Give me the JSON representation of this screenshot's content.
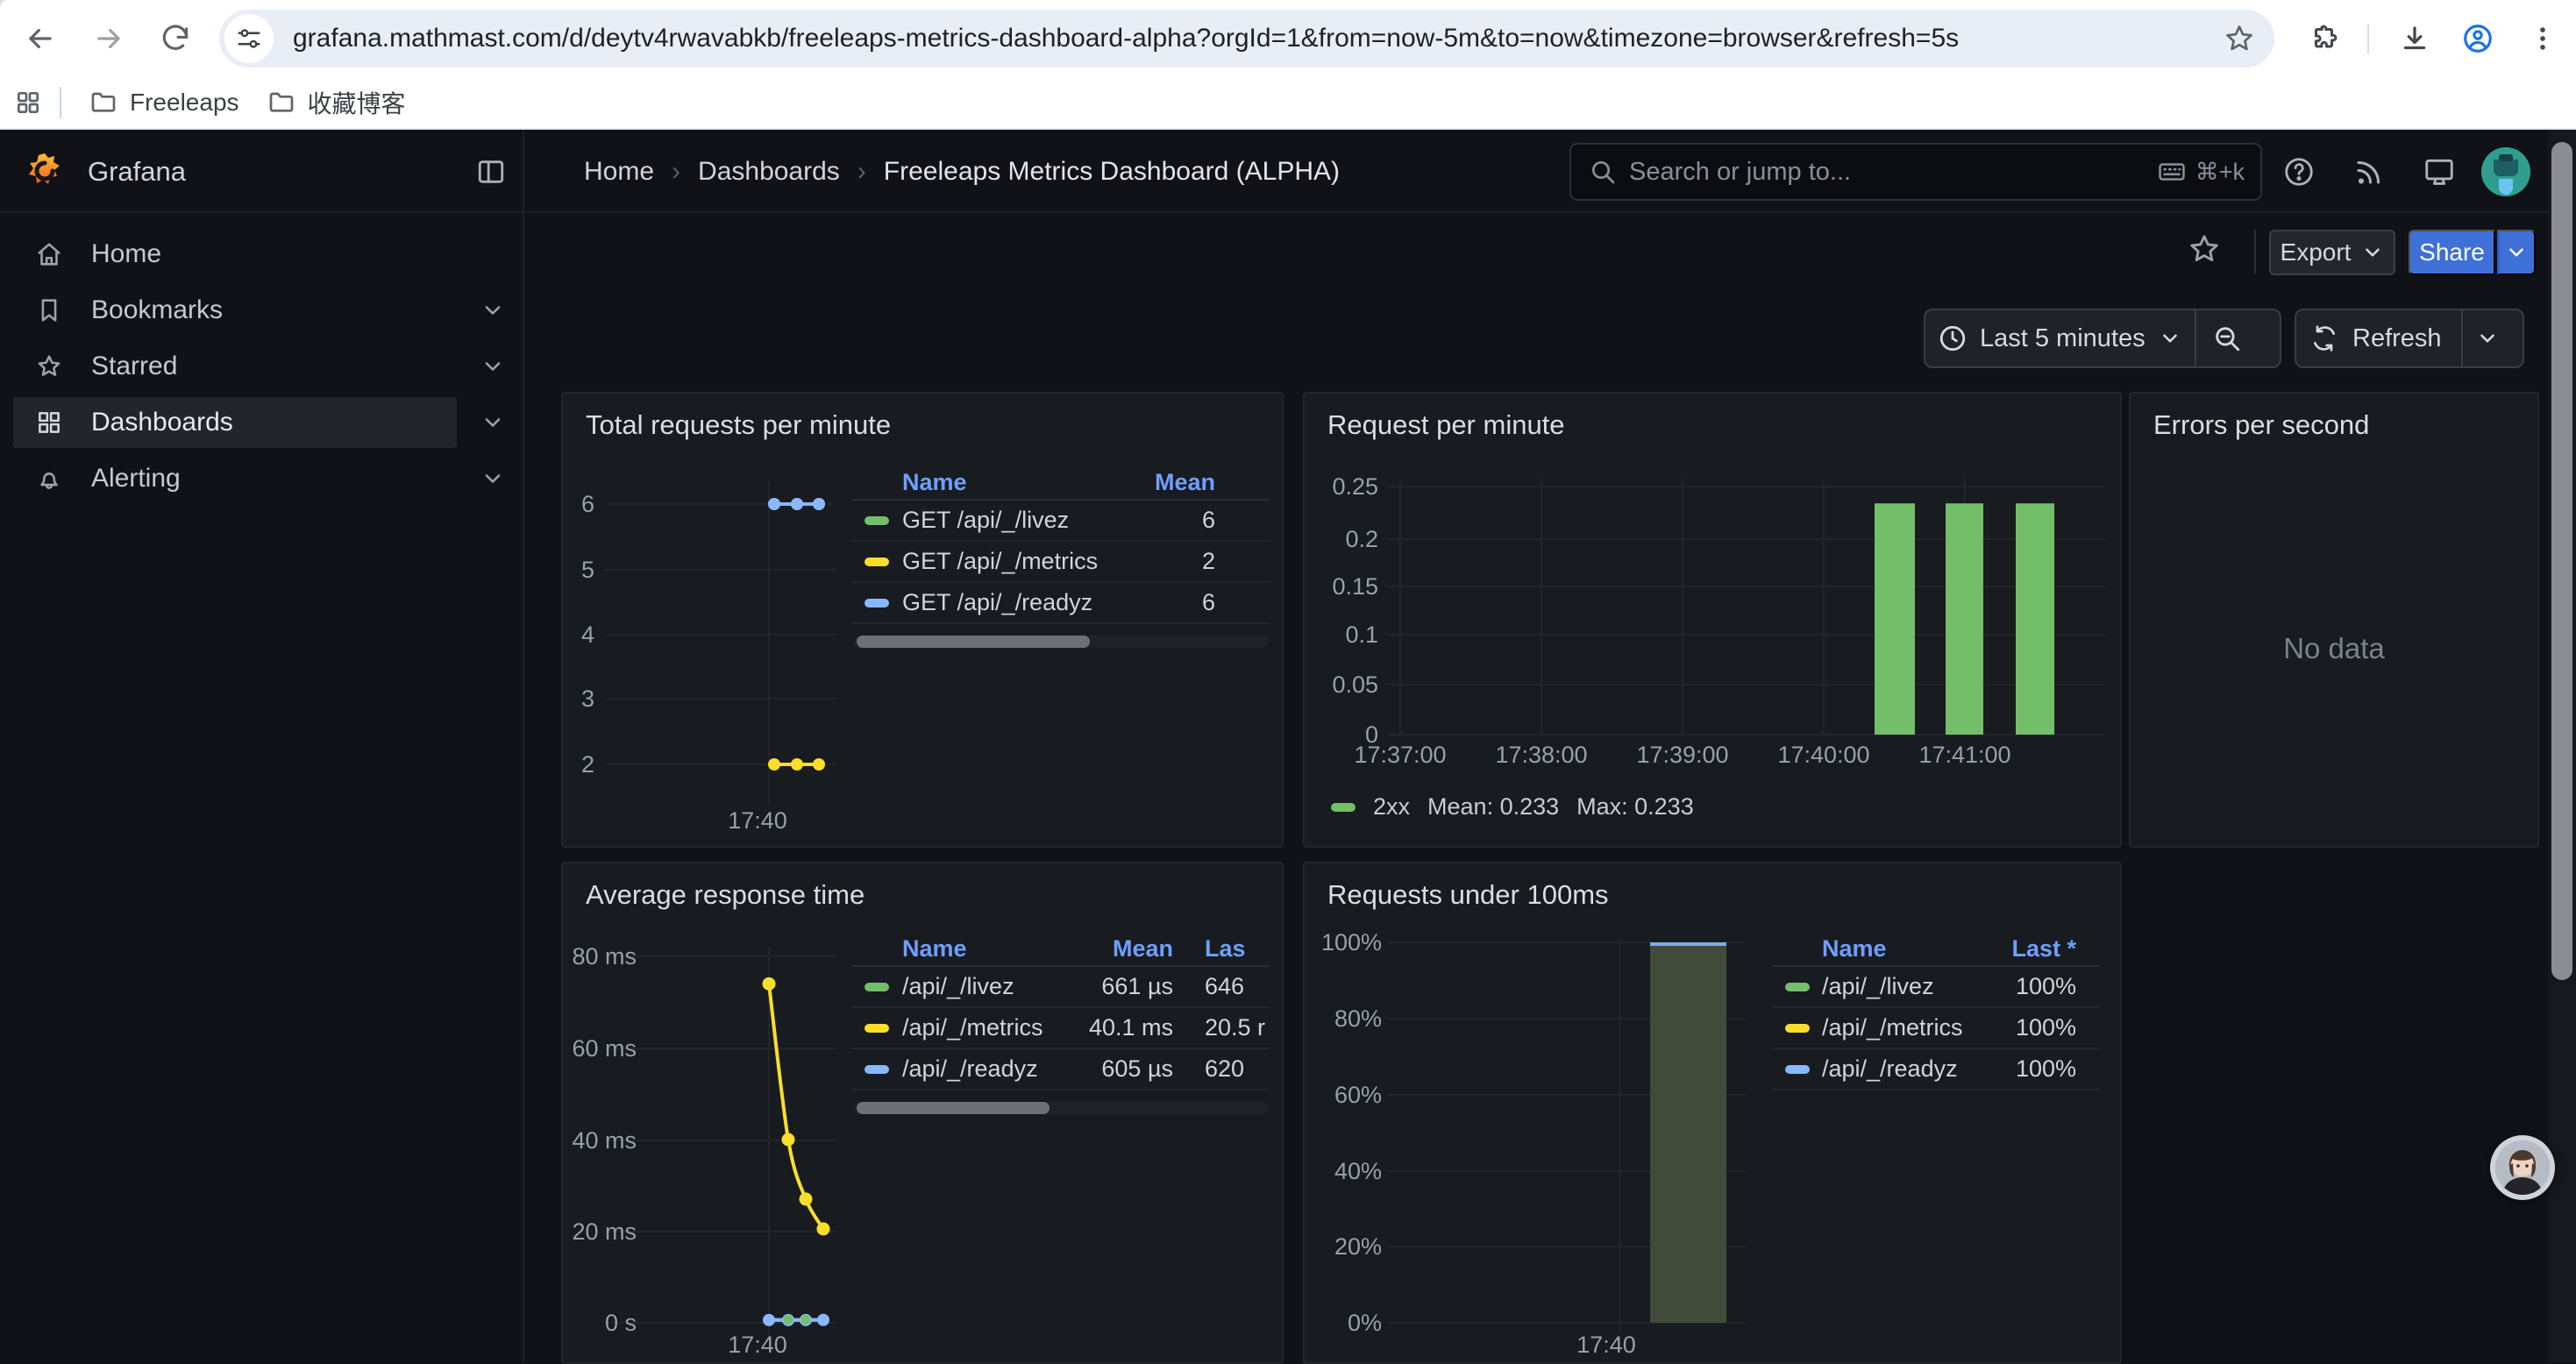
{
  "browser": {
    "url": "grafana.mathmast.com/d/deytv4rwavabkb/freeleaps-metrics-dashboard-alpha?orgId=1&from=now-5m&to=now&timezone=browser&refresh=5s",
    "bookmarks": [
      {
        "label": "Freeleaps"
      },
      {
        "label": "收藏博客"
      }
    ]
  },
  "nav": {
    "brand": "Grafana",
    "breadcrumb": [
      "Home",
      "Dashboards",
      "Freeleaps Metrics Dashboard (ALPHA)"
    ],
    "search": {
      "placeholder": "Search or jump to...",
      "shortcut": "⌘+k"
    }
  },
  "sidebar": {
    "items": [
      {
        "label": "Home",
        "icon": "home",
        "expandable": false,
        "active": false
      },
      {
        "label": "Bookmarks",
        "icon": "bookmark",
        "expandable": true,
        "active": false
      },
      {
        "label": "Starred",
        "icon": "star",
        "expandable": true,
        "active": false
      },
      {
        "label": "Dashboards",
        "icon": "apps",
        "expandable": true,
        "active": true
      },
      {
        "label": "Alerting",
        "icon": "bell",
        "expandable": true,
        "active": false
      }
    ]
  },
  "toolbar": {
    "export_label": "Export",
    "share_label": "Share"
  },
  "timebar": {
    "range_label": "Last 5 minutes",
    "refresh_label": "Refresh"
  },
  "colors": {
    "green": "#73bf69",
    "yellow": "#fade2a",
    "blue": "#8ab8ff",
    "link": "#6e9fff",
    "accent": "#3e70d8"
  },
  "panels": [
    {
      "title": "Total requests per minute",
      "chart_data": {
        "type": "line",
        "x_ticks": [
          "17:40"
        ],
        "y_ticks": [
          "6",
          "5",
          "4",
          "3",
          "2"
        ],
        "ylim": [
          2,
          6
        ],
        "x_points": [
          "17:40:05",
          "17:40:35",
          "17:41:05"
        ],
        "series": [
          {
            "name": "GET /api/_/livez",
            "color": "#73bf69",
            "values": [
              6,
              6,
              6
            ]
          },
          {
            "name": "GET /api/_/metrics",
            "color": "#fade2a",
            "values": [
              2,
              2,
              2
            ]
          },
          {
            "name": "GET /api/_/readyz",
            "color": "#8ab8ff",
            "values": [
              6,
              6,
              6
            ]
          }
        ]
      },
      "legend_table": {
        "columns": [
          "Name",
          "Mean"
        ],
        "rows": [
          {
            "name": "GET /api/_/livez",
            "color": "#73bf69",
            "mean": "6"
          },
          {
            "name": "GET /api/_/metrics",
            "color": "#fade2a",
            "mean": "2"
          },
          {
            "name": "GET /api/_/readyz",
            "color": "#8ab8ff",
            "mean": "6"
          }
        ]
      }
    },
    {
      "title": "Request per minute",
      "chart_data": {
        "type": "bar",
        "x_ticks": [
          "17:37:00",
          "17:38:00",
          "17:39:00",
          "17:40:00",
          "17:41:00"
        ],
        "y_ticks": [
          "0.25",
          "0.2",
          "0.15",
          "0.1",
          "0.05",
          "0"
        ],
        "ylim": [
          0,
          0.25
        ],
        "bar_times": [
          "17:40:30",
          "17:41:00",
          "17:41:30"
        ],
        "values": [
          0.233,
          0.233,
          0.233
        ],
        "series_name": "2xx",
        "bar_color": "#73bf69"
      },
      "legend": {
        "name": "2xx",
        "mean": "Mean: 0.233",
        "max": "Max: 0.233"
      }
    },
    {
      "title": "Errors per second",
      "no_data": "No data"
    },
    {
      "title": "Average response time",
      "chart_data": {
        "type": "line",
        "x_ticks": [
          "17:40"
        ],
        "y_ticks": [
          "80 ms",
          "60 ms",
          "40 ms",
          "20 ms",
          "0 s"
        ],
        "ylim_ms": [
          0,
          80
        ],
        "x_points": [
          "17:40:00",
          "17:40:25",
          "17:40:50",
          "17:41:15"
        ],
        "series": [
          {
            "name": "/api/_/livez",
            "color": "#73bf69",
            "values_ms": [
              0.66,
              0.65,
              0.64,
              0.65
            ]
          },
          {
            "name": "/api/_/metrics",
            "color": "#fade2a",
            "values_ms": [
              74,
              40,
              27,
              20.5
            ]
          },
          {
            "name": "/api/_/readyz",
            "color": "#8ab8ff",
            "values_ms": [
              0.6,
              0.6,
              0.61,
              0.62
            ]
          }
        ]
      },
      "legend_table": {
        "columns": [
          "Name",
          "Mean",
          "Las"
        ],
        "rows": [
          {
            "name": "/api/_/livez",
            "color": "#73bf69",
            "mean": "661 µs",
            "last": "646"
          },
          {
            "name": "/api/_/metrics",
            "color": "#fade2a",
            "mean": "40.1 ms",
            "last": "20.5 r"
          },
          {
            "name": "/api/_/readyz",
            "color": "#8ab8ff",
            "mean": "605 µs",
            "last": "620"
          }
        ]
      }
    },
    {
      "title": "Requests under 100ms",
      "chart_data": {
        "type": "bar",
        "x_ticks": [
          "17:40"
        ],
        "y_ticks": [
          "100%",
          "80%",
          "60%",
          "40%",
          "20%",
          "0%"
        ],
        "ylim_pct": [
          0,
          100
        ],
        "bar_times": [
          "17:40:55"
        ],
        "values": [
          100
        ],
        "bar_fill": "#424a39",
        "bar_top_color": "#7fa8ec"
      },
      "legend_table": {
        "columns": [
          "Name",
          "Last *"
        ],
        "rows": [
          {
            "name": "/api/_/livez",
            "color": "#73bf69",
            "last": "100%"
          },
          {
            "name": "/api/_/metrics",
            "color": "#fade2a",
            "last": "100%"
          },
          {
            "name": "/api/_/readyz",
            "color": "#8ab8ff",
            "last": "100%"
          }
        ]
      }
    }
  ]
}
